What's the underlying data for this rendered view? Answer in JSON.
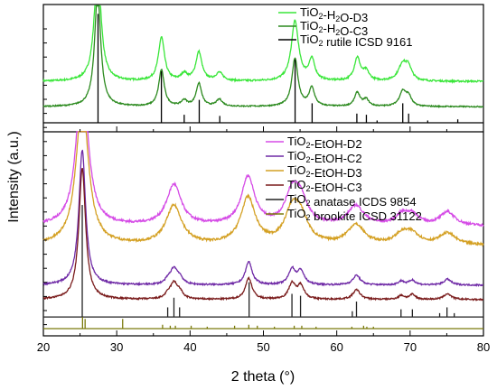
{
  "chart_data": {
    "type": "line",
    "xlabel": "2 theta (°)",
    "ylabel": "Intensity (a.u.)",
    "xlim": [
      20,
      80
    ],
    "x_ticks": [
      "20",
      "30",
      "40",
      "50",
      "60",
      "70",
      "80"
    ],
    "y_tick_labels": "none",
    "grid": false,
    "panels": [
      {
        "position": "top",
        "legend_position": "top-right",
        "legend": [
          {
            "base": "TiO",
            "sub": "2",
            "rest": "-H",
            "sub2": "2",
            "rest2": "O-D3",
            "color": "#39e639"
          },
          {
            "base": "TiO",
            "sub": "2",
            "rest": "-H",
            "sub2": "2",
            "rest2": "O-C3",
            "color": "#2c8a1f"
          },
          {
            "base": "TiO",
            "sub": "2",
            "rest": " rutile ICSD 9161",
            "sub2": "",
            "rest2": "",
            "color": "#000000"
          }
        ],
        "series": [
          {
            "name": "TiO2-H2O-D3",
            "kind": "pattern",
            "color": "#39e639",
            "baseline": 0.36,
            "noise": 0.015,
            "peaks": [
              [
                27.4,
                1.0,
                0.55
              ],
              [
                36.1,
                0.38,
                0.5
              ],
              [
                39.2,
                0.06,
                0.5
              ],
              [
                41.2,
                0.25,
                0.5
              ],
              [
                44.0,
                0.07,
                0.6
              ],
              [
                54.3,
                0.52,
                0.6
              ],
              [
                56.6,
                0.18,
                0.5
              ],
              [
                62.8,
                0.2,
                0.5
              ],
              [
                64.0,
                0.08,
                0.5
              ],
              [
                69.0,
                0.15,
                0.7
              ],
              [
                69.8,
                0.1,
                0.5
              ]
            ]
          },
          {
            "name": "TiO2-H2O-C3",
            "kind": "pattern",
            "color": "#2c8a1f",
            "baseline": 0.14,
            "noise": 0.01,
            "peaks": [
              [
                27.4,
                1.0,
                0.5
              ],
              [
                36.1,
                0.32,
                0.45
              ],
              [
                39.2,
                0.05,
                0.45
              ],
              [
                41.2,
                0.2,
                0.45
              ],
              [
                44.0,
                0.06,
                0.5
              ],
              [
                54.3,
                0.42,
                0.5
              ],
              [
                56.6,
                0.16,
                0.45
              ],
              [
                62.8,
                0.12,
                0.45
              ],
              [
                64.0,
                0.06,
                0.45
              ],
              [
                69.0,
                0.13,
                0.55
              ],
              [
                69.8,
                0.08,
                0.45
              ]
            ]
          },
          {
            "name": "TiO2 rutile ICSD 9161",
            "kind": "sticks",
            "color": "#000000",
            "baseline": 0.0,
            "sticks": [
              [
                27.45,
                0.95
              ],
              [
                36.09,
                0.45
              ],
              [
                39.2,
                0.07
              ],
              [
                41.25,
                0.2
              ],
              [
                44.05,
                0.06
              ],
              [
                54.32,
                0.55
              ],
              [
                56.64,
                0.17
              ],
              [
                62.74,
                0.08
              ],
              [
                64.04,
                0.07
              ],
              [
                65.5,
                0.02
              ],
              [
                69.0,
                0.17
              ],
              [
                69.8,
                0.08
              ],
              [
                72.4,
                0.02
              ],
              [
                76.5,
                0.03
              ]
            ]
          }
        ]
      },
      {
        "position": "bottom",
        "legend_position": "top-right",
        "legend": [
          {
            "base": "TiO",
            "sub": "2",
            "rest": "-EtOH-D2",
            "sub2": "",
            "rest2": "",
            "color": "#d54be6"
          },
          {
            "base": "TiO",
            "sub": "2",
            "rest": "-EtOH-C2",
            "sub2": "",
            "rest2": "",
            "color": "#6f2aa6"
          },
          {
            "base": "TiO",
            "sub": "2",
            "rest": "-EtOH-D3",
            "sub2": "",
            "rest2": "",
            "color": "#d4a023"
          },
          {
            "base": "TiO",
            "sub": "2",
            "rest": "-EtOH-C3",
            "sub2": "",
            "rest2": "",
            "color": "#7a1c1c"
          },
          {
            "base": "TiO",
            "sub": "2",
            "rest": " anatase ICDS 9854",
            "sub2": "",
            "rest2": "",
            "color": "#222222"
          },
          {
            "base": "TiO",
            "sub": "2",
            "rest": " brookite ICSD 31122",
            "sub2": "",
            "rest2": "",
            "color": "#7b7a0c"
          }
        ],
        "series": [
          {
            "name": "TiO2-EtOH-D2",
            "kind": "pattern",
            "color": "#d54be6",
            "baseline": 0.53,
            "noise": 0.012,
            "peaks": [
              [
                25.3,
                0.83,
                0.9
              ],
              [
                37.8,
                0.21,
                1.2
              ],
              [
                47.9,
                0.25,
                1.1
              ],
              [
                53.9,
                0.16,
                1.1
              ],
              [
                55.1,
                0.12,
                1.1
              ],
              [
                62.6,
                0.1,
                1.3
              ],
              [
                68.9,
                0.05,
                1.1
              ],
              [
                70.3,
                0.05,
                1.1
              ],
              [
                75.1,
                0.07,
                1.2
              ]
            ]
          },
          {
            "name": "TiO2-EtOH-D3",
            "kind": "pattern",
            "color": "#d4a023",
            "baseline": 0.43,
            "noise": 0.012,
            "peaks": [
              [
                25.3,
                0.75,
                1.0
              ],
              [
                37.8,
                0.2,
                1.3
              ],
              [
                47.9,
                0.24,
                1.2
              ],
              [
                53.9,
                0.16,
                1.2
              ],
              [
                55.1,
                0.12,
                1.2
              ],
              [
                62.6,
                0.1,
                1.4
              ],
              [
                68.9,
                0.05,
                1.2
              ],
              [
                70.3,
                0.05,
                1.2
              ],
              [
                75.1,
                0.06,
                1.3
              ]
            ]
          },
          {
            "name": "TiO2-EtOH-C2",
            "kind": "pattern",
            "color": "#6f2aa6",
            "baseline": 0.225,
            "noise": 0.008,
            "peaks": [
              [
                25.3,
                0.7,
                0.55
              ],
              [
                37.0,
                0.02,
                0.5
              ],
              [
                37.8,
                0.08,
                0.6
              ],
              [
                38.6,
                0.03,
                0.5
              ],
              [
                48.0,
                0.12,
                0.55
              ],
              [
                53.9,
                0.08,
                0.55
              ],
              [
                55.1,
                0.07,
                0.55
              ],
              [
                62.7,
                0.05,
                0.6
              ],
              [
                68.8,
                0.02,
                0.5
              ],
              [
                70.3,
                0.025,
                0.5
              ],
              [
                75.1,
                0.03,
                0.6
              ]
            ]
          },
          {
            "name": "TiO2-EtOH-C3",
            "kind": "pattern",
            "color": "#7a1c1c",
            "baseline": 0.15,
            "noise": 0.008,
            "peaks": [
              [
                25.3,
                0.68,
                0.55
              ],
              [
                37.0,
                0.02,
                0.5
              ],
              [
                37.8,
                0.08,
                0.6
              ],
              [
                38.6,
                0.03,
                0.5
              ],
              [
                48.0,
                0.11,
                0.55
              ],
              [
                53.9,
                0.08,
                0.55
              ],
              [
                55.1,
                0.07,
                0.55
              ],
              [
                62.7,
                0.05,
                0.6
              ],
              [
                68.8,
                0.02,
                0.5
              ],
              [
                70.3,
                0.025,
                0.5
              ],
              [
                75.1,
                0.03,
                0.6
              ]
            ]
          },
          {
            "name": "TiO2 anatase ICDS 9854",
            "kind": "sticks",
            "color": "#222222",
            "baseline": 0.06,
            "sticks": [
              [
                25.3,
                0.58
              ],
              [
                36.95,
                0.05
              ],
              [
                37.8,
                0.1
              ],
              [
                38.57,
                0.05
              ],
              [
                48.05,
                0.18
              ],
              [
                53.89,
                0.12
              ],
              [
                55.06,
                0.11
              ],
              [
                62.12,
                0.03
              ],
              [
                62.69,
                0.08
              ],
              [
                68.76,
                0.04
              ],
              [
                70.31,
                0.04
              ],
              [
                74.03,
                0.02
              ],
              [
                75.03,
                0.05
              ],
              [
                76.02,
                0.02
              ]
            ]
          },
          {
            "name": "TiO2 brookite ICSD 31122",
            "kind": "sticks",
            "color": "#7b7a0c",
            "baseline": 0.0,
            "sticks": [
              [
                25.34,
                0.06
              ],
              [
                25.69,
                0.05
              ],
              [
                30.81,
                0.05
              ],
              [
                36.25,
                0.02
              ],
              [
                37.3,
                0.015
              ],
              [
                38.0,
                0.015
              ],
              [
                40.15,
                0.015
              ],
              [
                42.34,
                0.01
              ],
              [
                46.07,
                0.015
              ],
              [
                48.01,
                0.02
              ],
              [
                49.17,
                0.015
              ],
              [
                51.5,
                0.01
              ],
              [
                54.2,
                0.015
              ],
              [
                55.23,
                0.015
              ],
              [
                57.18,
                0.01
              ],
              [
                62.06,
                0.01
              ],
              [
                63.66,
                0.015
              ],
              [
                64.1,
                0.01
              ],
              [
                65.0,
                0.01
              ]
            ]
          }
        ]
      }
    ]
  }
}
